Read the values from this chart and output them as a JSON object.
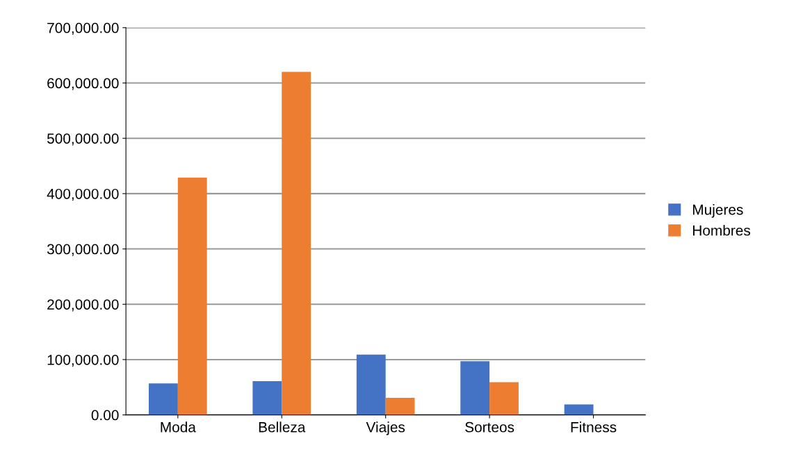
{
  "chart_data": {
    "type": "bar",
    "categories": [
      "Moda",
      "Belleza",
      "Viajes",
      "Sorteos",
      "Fitness"
    ],
    "series": [
      {
        "name": "Mujeres",
        "color": "#4472c4",
        "values": [
          57000,
          61000,
          109000,
          97000,
          19000
        ]
      },
      {
        "name": "Hombres",
        "color": "#ed7d31",
        "values": [
          429000,
          620000,
          31000,
          59000,
          0
        ]
      }
    ],
    "ylim": [
      0,
      700000
    ],
    "yticks": [
      {
        "value": 0,
        "label": "0.00"
      },
      {
        "value": 100000,
        "label": "100,000.00"
      },
      {
        "value": 200000,
        "label": "200,000.00"
      },
      {
        "value": 300000,
        "label": "300,000.00"
      },
      {
        "value": 400000,
        "label": "400,000.00"
      },
      {
        "value": 500000,
        "label": "500,000.00"
      },
      {
        "value": 600000,
        "label": "600,000.00"
      },
      {
        "value": 700000,
        "label": "700,000.00"
      }
    ],
    "grid": "y",
    "legend": "right"
  }
}
